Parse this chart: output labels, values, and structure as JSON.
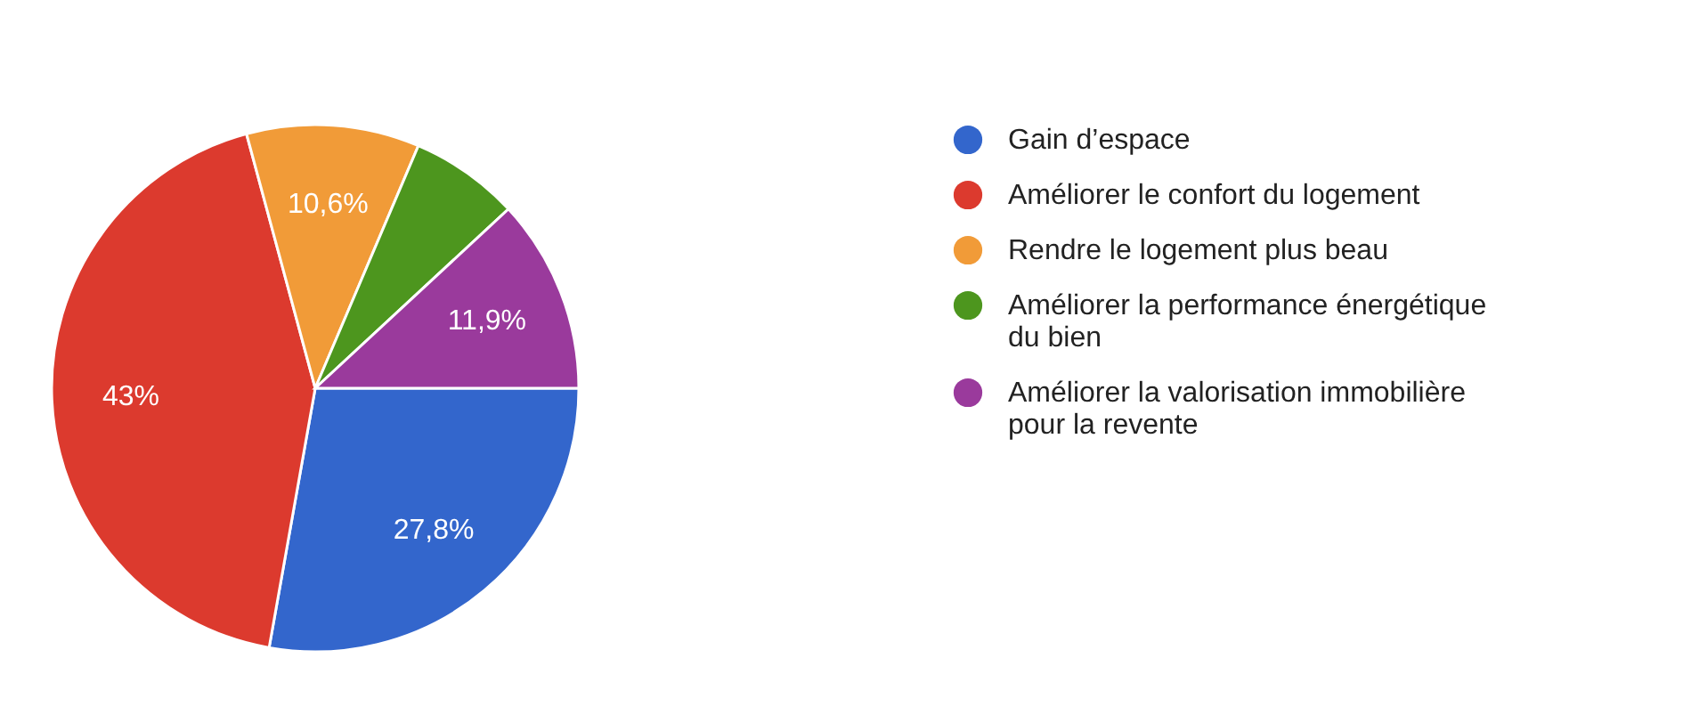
{
  "chart_data": {
    "type": "pie",
    "categories": [
      "Gain d’espace",
      "Améliorer le confort du logement",
      "Rendre le logement plus beau",
      "Améliorer la performance énergétique du bien",
      "Améliorer la valorisation immobilière pour la revente"
    ],
    "values": [
      27.8,
      43,
      10.6,
      6.7,
      11.9
    ],
    "colors": [
      "#3366cc",
      "#dc3a2e",
      "#f19b38",
      "#4d961e",
      "#9a3a9c"
    ],
    "value_labels": [
      "27,8%",
      "43%",
      "10,6%",
      null,
      "11,9%"
    ],
    "legend": "right"
  }
}
